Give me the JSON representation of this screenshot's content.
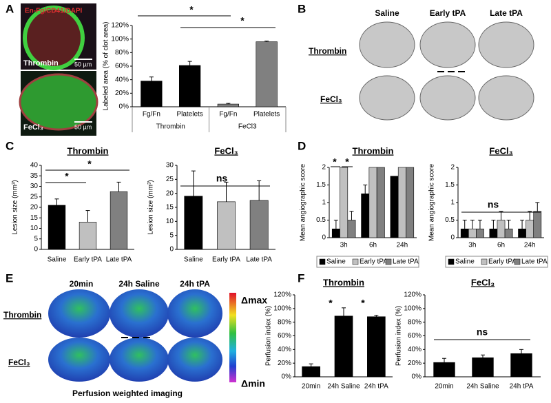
{
  "panel_labels": [
    "A",
    "B",
    "C",
    "D",
    "E",
    "F"
  ],
  "panel_a": {
    "stain": "En-Fg/CD41/DAPI",
    "rows": [
      "Thrombin",
      "FeCl₃"
    ],
    "scale_bars": [
      "50 µm",
      "50 µm"
    ]
  },
  "panel_b": {
    "columns": [
      "Saline",
      "Early tPA",
      "Late tPA"
    ],
    "rows": [
      "Thrombin",
      "FeCl₃"
    ]
  },
  "panel_e": {
    "columns": [
      "20min",
      "24h Saline",
      "24h tPA"
    ],
    "rows": [
      "Thrombin",
      "FeCl₃"
    ],
    "scale": [
      "Δmax",
      "Δmin"
    ],
    "caption": "Perfusion weighted imaging"
  },
  "chart_data": [
    {
      "type": "bar",
      "ylabel": "Labeled area (% of clot area)",
      "categories": [
        "Fg/Fn",
        "Platelets",
        "Fg/Fn",
        "Platelets"
      ],
      "group_labels": [
        "Thrombin",
        "FeCl3"
      ],
      "series": [
        {
          "colors": [
            "#000000",
            "#000000",
            "#808080",
            "#808080"
          ],
          "values": [
            38,
            61,
            4,
            96
          ],
          "errors": [
            6,
            6,
            1,
            1
          ]
        }
      ],
      "ylim": [
        0,
        120
      ],
      "yticks": [
        {
          "value": 0,
          "label": "0%"
        },
        {
          "value": 20,
          "label": "20%"
        },
        {
          "value": 40,
          "label": "40%"
        },
        {
          "value": 60,
          "label": "60%"
        },
        {
          "value": 80,
          "label": "80%"
        },
        {
          "value": 100,
          "label": "100%"
        },
        {
          "value": 120,
          "label": "120%"
        }
      ],
      "annotations": [
        "*",
        "*"
      ]
    },
    {
      "type": "bar",
      "title": "Thrombin",
      "ylabel": "Lesion size (mm³)",
      "categories": [
        "Saline",
        "Early tPA",
        "Late tPA"
      ],
      "series": [
        {
          "colors": [
            "#000000",
            "#c0c0c0",
            "#808080"
          ],
          "values": [
            21,
            13,
            27.5
          ],
          "errors": [
            3,
            5.5,
            4.5
          ]
        }
      ],
      "ylim": [
        0,
        40
      ],
      "yticks": [
        0,
        5,
        10,
        15,
        20,
        25,
        30,
        35,
        40
      ],
      "annotations": [
        "*",
        "*"
      ]
    },
    {
      "type": "bar",
      "title": "FeCl₃",
      "ylabel": "Lesion size (mm³)",
      "categories": [
        "Saline",
        "Early tPA",
        "Late tPA"
      ],
      "series": [
        {
          "colors": [
            "#000000",
            "#c0c0c0",
            "#808080"
          ],
          "values": [
            19,
            17,
            17.5
          ],
          "errors": [
            9,
            7,
            7
          ]
        }
      ],
      "ylim": [
        0,
        30
      ],
      "yticks": [
        0,
        5,
        10,
        15,
        20,
        25,
        30
      ],
      "annotations": [
        "ns"
      ]
    },
    {
      "type": "bar",
      "title": "Thrombin",
      "ylabel": "Mean angiographic score",
      "categories": [
        "3h",
        "6h",
        "24h"
      ],
      "series": [
        {
          "name": "Saline",
          "color": "#000000",
          "values": [
            0.25,
            1.25,
            1.75
          ],
          "errors": [
            0.25,
            0.25,
            null
          ]
        },
        {
          "name": "Early tPA",
          "color": "#c0c0c0",
          "values": [
            2,
            2,
            2
          ],
          "errors": [
            null,
            null,
            null
          ]
        },
        {
          "name": "Late tPA",
          "color": "#808080",
          "values": [
            0.5,
            2,
            2
          ],
          "errors": [
            0.25,
            null,
            null
          ]
        }
      ],
      "ylim": [
        0,
        2
      ],
      "yticks": [
        0,
        0.5,
        1,
        1.5,
        2
      ],
      "annotations": [
        "*",
        "*"
      ]
    },
    {
      "type": "bar",
      "title": "FeCl₃",
      "ylabel": "Mean angiographic score",
      "categories": [
        "3h",
        "6h",
        "24h"
      ],
      "series": [
        {
          "name": "Saline",
          "color": "#000000",
          "values": [
            0.25,
            0.25,
            0.25
          ],
          "errors": [
            0.25,
            0.25,
            0.25
          ]
        },
        {
          "name": "Early tPA",
          "color": "#c0c0c0",
          "values": [
            0.25,
            0.5,
            0.5
          ],
          "errors": [
            0.25,
            0.25,
            0.25
          ]
        },
        {
          "name": "Late tPA",
          "color": "#808080",
          "values": [
            0.25,
            0.25,
            0.75
          ],
          "errors": [
            0.25,
            0.25,
            0.25
          ]
        }
      ],
      "ylim": [
        0,
        2
      ],
      "yticks": [
        0,
        0.5,
        1,
        1.5,
        2
      ],
      "annotations": [
        "ns"
      ]
    },
    {
      "type": "bar",
      "title": "Thrombin",
      "ylabel": "Perfusion index (%)",
      "categories": [
        "20min",
        "24h Saline",
        "24h tPA"
      ],
      "series": [
        {
          "color": "#000000",
          "values": [
            15,
            89,
            88
          ],
          "errors": [
            4,
            12,
            2
          ]
        }
      ],
      "ylim": [
        0,
        120
      ],
      "yticks": [
        {
          "value": 0,
          "label": "0%"
        },
        {
          "value": 20,
          "label": "20%"
        },
        {
          "value": 40,
          "label": "40%"
        },
        {
          "value": 60,
          "label": "60%"
        },
        {
          "value": 80,
          "label": "80%"
        },
        {
          "value": 100,
          "label": "100%"
        },
        {
          "value": 120,
          "label": "120%"
        }
      ],
      "annotations": [
        "*",
        "*"
      ]
    },
    {
      "type": "bar",
      "title": "FeCl₃",
      "ylabel": "Perfusion index (%)",
      "categories": [
        "20min",
        "24h Saline",
        "24h tPA"
      ],
      "series": [
        {
          "color": "#000000",
          "values": [
            21,
            28,
            34
          ],
          "errors": [
            6,
            4,
            6
          ]
        }
      ],
      "ylim": [
        0,
        120
      ],
      "yticks": [
        {
          "value": 0,
          "label": "0%"
        },
        {
          "value": 20,
          "label": "20%"
        },
        {
          "value": 40,
          "label": "40%"
        },
        {
          "value": 60,
          "label": "60%"
        },
        {
          "value": 80,
          "label": "80%"
        },
        {
          "value": 100,
          "label": "100%"
        },
        {
          "value": 120,
          "label": "120%"
        }
      ],
      "annotations": [
        "ns"
      ]
    }
  ]
}
